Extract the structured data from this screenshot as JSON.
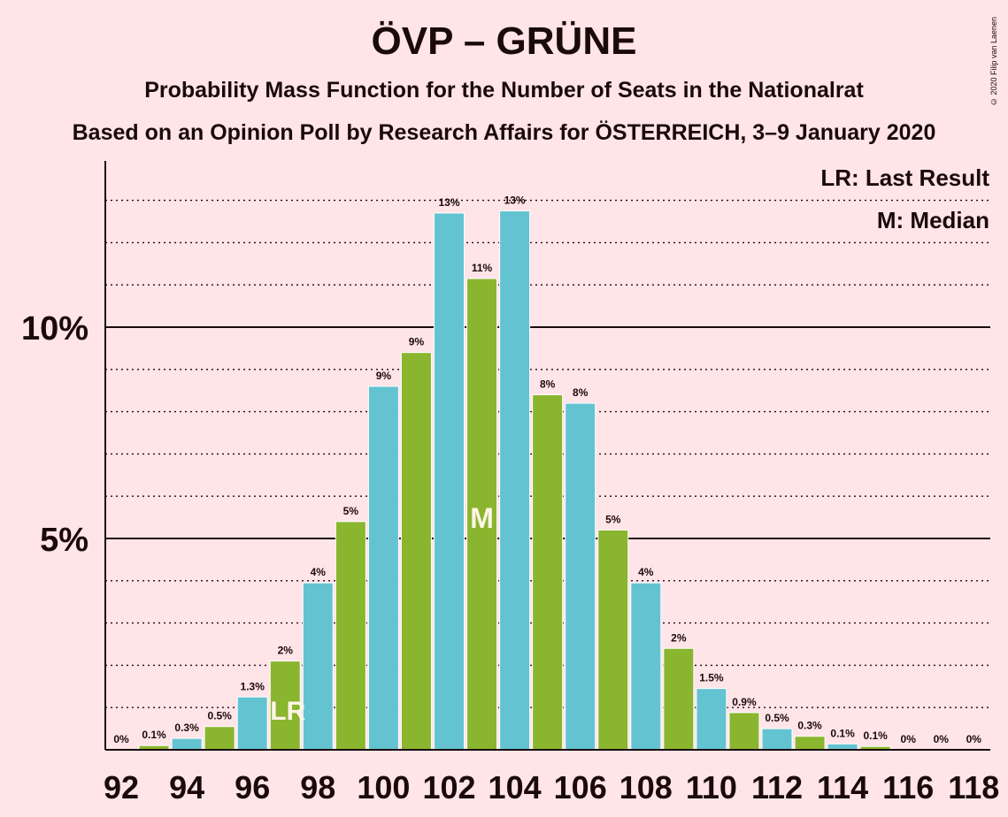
{
  "title": "ÖVP – GRÜNE",
  "subtitle": "Probability Mass Function for the Number of Seats in the Nationalrat",
  "subtitle2": "Based on an Opinion Poll by Research Affairs for ÖSTERREICH, 3–9 January 2020",
  "copyright": "© 2020 Filip van Laenen",
  "legend": {
    "last_result": "LR: Last Result",
    "median": "M: Median"
  },
  "colors": {
    "background": "#FFE4E8",
    "bar_teal": "#64C3D1",
    "bar_green": "#8AB52E",
    "text": "#1A0A0A",
    "marker_text": "#FFF5E8"
  },
  "chart_data": {
    "type": "bar",
    "x": [
      92,
      93,
      94,
      95,
      96,
      97,
      98,
      99,
      100,
      101,
      102,
      103,
      104,
      105,
      106,
      107,
      108,
      109,
      110,
      111,
      112,
      113,
      114,
      115,
      116,
      117,
      118
    ],
    "values": [
      0,
      0.1,
      0.27,
      0.55,
      1.25,
      2.1,
      3.95,
      5.4,
      8.6,
      9.4,
      12.7,
      11.15,
      12.75,
      8.4,
      8.2,
      5.2,
      3.95,
      2.4,
      1.45,
      0.88,
      0.5,
      0.32,
      0.14,
      0.08,
      0,
      0,
      0
    ],
    "data_labels": [
      "0%",
      "0.1%",
      "0.3%",
      "0.5%",
      "1.3%",
      "2%",
      "4%",
      "5%",
      "9%",
      "9%",
      "13%",
      "11%",
      "13%",
      "8%",
      "8%",
      "5%",
      "4%",
      "2%",
      "1.5%",
      "0.9%",
      "0.5%",
      "0.3%",
      "0.1%",
      "0.1%",
      "0%",
      "0%",
      "0%"
    ],
    "x_ticks": [
      "92",
      "94",
      "96",
      "98",
      "100",
      "102",
      "104",
      "106",
      "108",
      "110",
      "112",
      "114",
      "116",
      "118"
    ],
    "y_ticks": [
      "5%",
      "10%"
    ],
    "y_tick_values": [
      5,
      10
    ],
    "ylim": [
      0,
      13.9
    ],
    "grid": "dotted every 1%, solid at 5% and 10%",
    "last_result_seat": 97,
    "last_result_label": "LR",
    "median_seat": 103,
    "median_label": "M",
    "legend_position": "top-right"
  }
}
